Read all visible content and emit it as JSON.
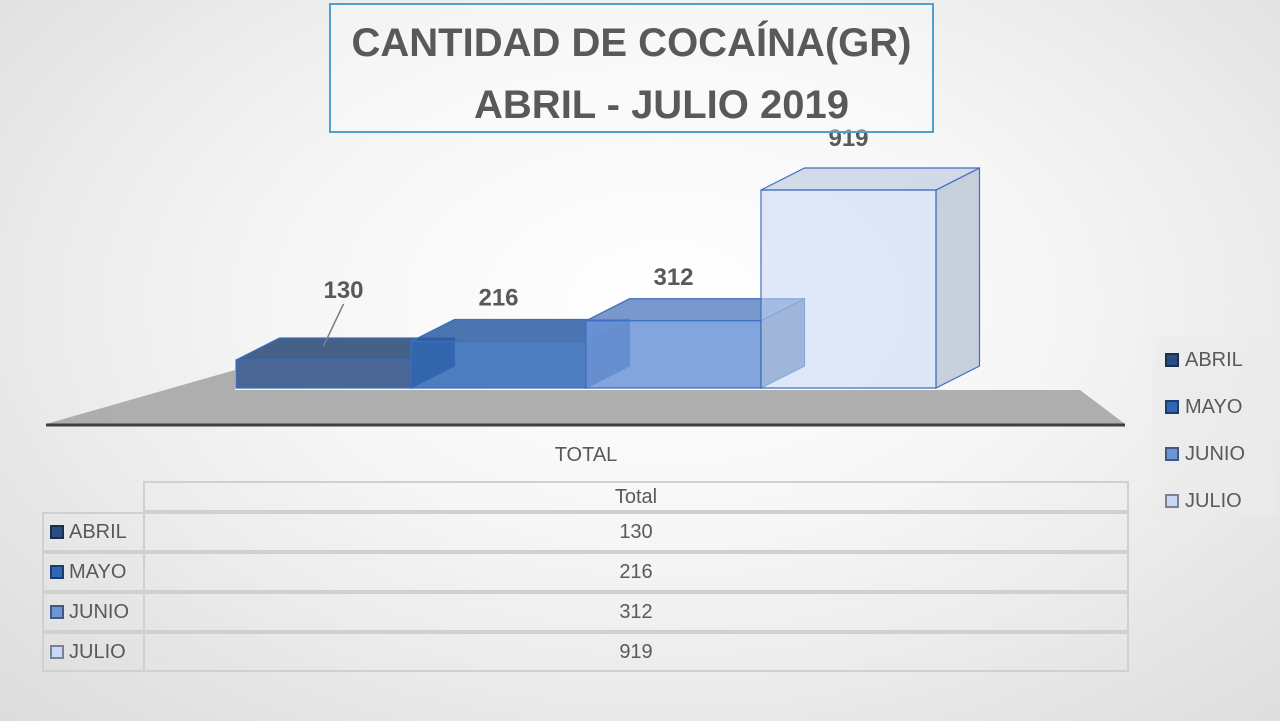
{
  "chart_data": {
    "type": "bar",
    "title": "CANTIDAD DE COCAÍNA(GR)",
    "subtitle": "ABRIL - JULIO  2019",
    "categories": [
      "TOTAL"
    ],
    "xlabel": "TOTAL",
    "series": [
      {
        "name": "ABRIL",
        "values": [
          130
        ],
        "label": "130",
        "color": "#2a4e80"
      },
      {
        "name": "MAYO",
        "values": [
          216
        ],
        "label": "216",
        "color": "#2f67b5"
      },
      {
        "name": "JUNIO",
        "values": [
          312
        ],
        "label": "312",
        "color": "#6d95d8"
      },
      {
        "name": "JULIO",
        "values": [
          919
        ],
        "label": "919",
        "color": "#c9d9f5"
      }
    ],
    "ylim": [
      0,
      919
    ],
    "legend": "right",
    "grid": false,
    "data_table": {
      "header": "Total",
      "rows": [
        {
          "label": "ABRIL",
          "value": "130"
        },
        {
          "label": "MAYO",
          "value": "216"
        },
        {
          "label": "JUNIO",
          "value": "312"
        },
        {
          "label": "JULIO",
          "value": "919"
        }
      ]
    }
  }
}
